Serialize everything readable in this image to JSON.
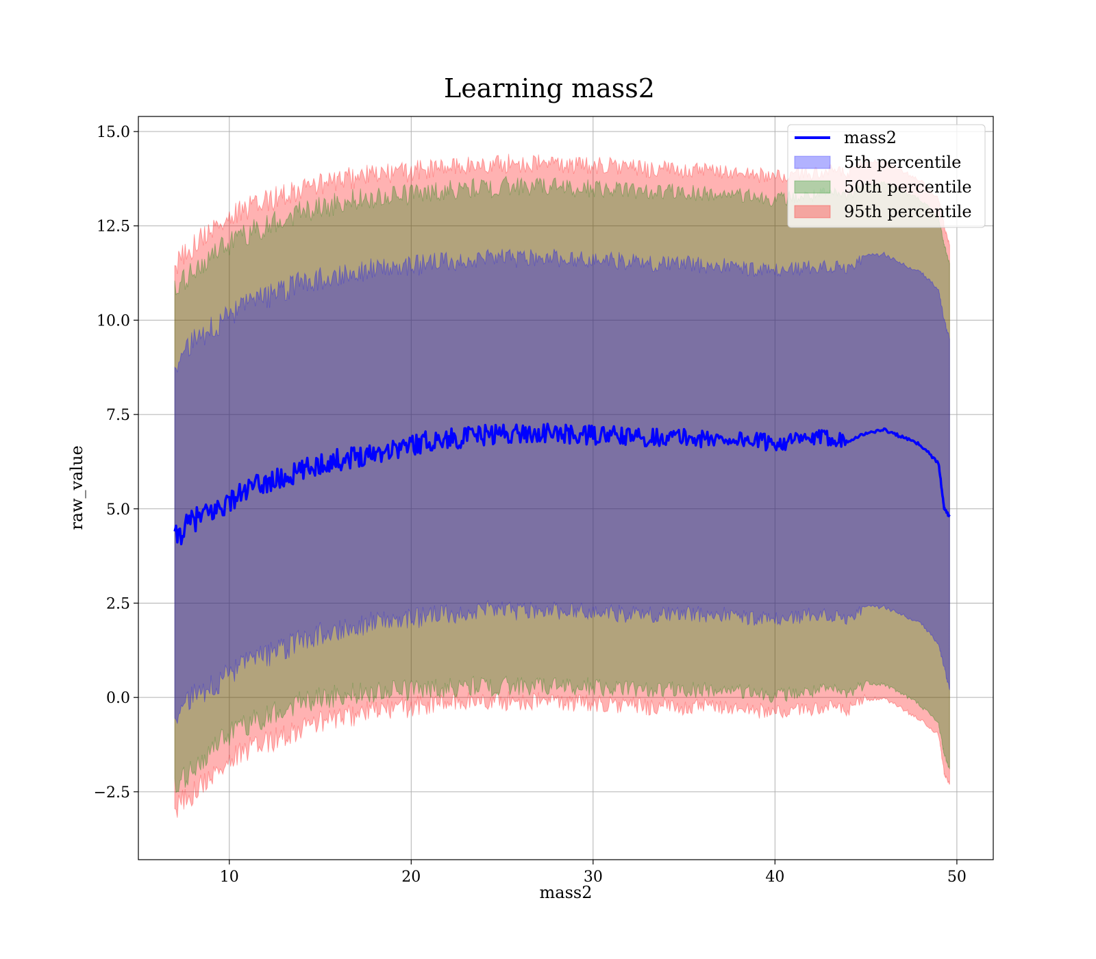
{
  "chart_data": {
    "type": "area",
    "title": "Learning mass2",
    "xlabel": "mass2",
    "ylabel": "raw_value",
    "xlim": [
      5,
      52
    ],
    "ylim": [
      -4.3,
      15.4
    ],
    "xticks": [
      10,
      20,
      30,
      40,
      50
    ],
    "yticks": [
      -2.5,
      0.0,
      2.5,
      5.0,
      7.5,
      10.0,
      12.5,
      15.0
    ],
    "xtick_labels": [
      "10",
      "20",
      "30",
      "40",
      "50"
    ],
    "ytick_labels": [
      "−2.5",
      "0.0",
      "2.5",
      "5.0",
      "7.5",
      "10.0",
      "12.5",
      "15.0"
    ],
    "grid": true,
    "legend_position": "top-right",
    "x": [
      7,
      8,
      9,
      10,
      11,
      12,
      13,
      14,
      15,
      16,
      17,
      18,
      19,
      20,
      21,
      22,
      23,
      24,
      25,
      26,
      27,
      28,
      29,
      30,
      31,
      32,
      33,
      34,
      35,
      36,
      37,
      38,
      39,
      40,
      41,
      42,
      43,
      44,
      45,
      46,
      47,
      48,
      49,
      49.3,
      49.6
    ],
    "series": [
      {
        "name": "mass2",
        "kind": "line",
        "color": "#0000ff",
        "values": [
          4.2,
          4.7,
          4.9,
          5.2,
          5.5,
          5.7,
          5.8,
          6.0,
          6.2,
          6.3,
          6.4,
          6.5,
          6.6,
          6.7,
          6.8,
          6.85,
          6.9,
          6.95,
          7.0,
          7.0,
          7.0,
          7.0,
          6.95,
          6.95,
          6.95,
          6.9,
          6.9,
          6.9,
          6.9,
          6.85,
          6.85,
          6.85,
          6.8,
          6.75,
          6.8,
          6.85,
          6.9,
          6.8,
          7.0,
          7.1,
          6.9,
          6.7,
          6.2,
          5.0,
          4.8
        ]
      },
      {
        "name": "5th percentile",
        "kind": "band",
        "color": "#0000ff",
        "lower": [
          -0.5,
          0.0,
          0.3,
          0.6,
          0.9,
          1.1,
          1.3,
          1.5,
          1.7,
          1.8,
          1.9,
          2.0,
          2.05,
          2.1,
          2.15,
          2.2,
          2.25,
          2.3,
          2.3,
          2.3,
          2.3,
          2.3,
          2.3,
          2.25,
          2.25,
          2.2,
          2.2,
          2.2,
          2.2,
          2.2,
          2.2,
          2.15,
          2.1,
          2.05,
          2.1,
          2.2,
          2.2,
          2.1,
          2.4,
          2.4,
          2.2,
          2.0,
          1.4,
          0.8,
          0.2
        ],
        "upper": [
          8.8,
          9.4,
          9.8,
          10.1,
          10.4,
          10.6,
          10.8,
          11.0,
          11.1,
          11.2,
          11.3,
          11.35,
          11.4,
          11.45,
          11.5,
          11.55,
          11.6,
          11.6,
          11.65,
          11.65,
          11.65,
          11.65,
          11.6,
          11.6,
          11.6,
          11.55,
          11.5,
          11.5,
          11.5,
          11.45,
          11.45,
          11.4,
          11.35,
          11.3,
          11.35,
          11.4,
          11.45,
          11.4,
          11.7,
          11.75,
          11.5,
          11.3,
          10.8,
          10.0,
          9.5
        ]
      },
      {
        "name": "50th percentile",
        "kind": "band",
        "color": "#008000",
        "lower": [
          -2.5,
          -1.9,
          -1.4,
          -1.0,
          -0.7,
          -0.5,
          -0.3,
          -0.1,
          0.0,
          0.05,
          0.1,
          0.15,
          0.2,
          0.2,
          0.25,
          0.25,
          0.3,
          0.3,
          0.3,
          0.3,
          0.3,
          0.3,
          0.3,
          0.3,
          0.25,
          0.25,
          0.2,
          0.2,
          0.2,
          0.2,
          0.2,
          0.15,
          0.1,
          0.05,
          0.1,
          0.15,
          0.2,
          0.1,
          0.4,
          0.35,
          0.1,
          -0.2,
          -0.7,
          -1.5,
          -1.9
        ],
        "upper": [
          10.7,
          11.3,
          11.7,
          12.0,
          12.3,
          12.5,
          12.7,
          12.9,
          13.0,
          13.1,
          13.2,
          13.25,
          13.3,
          13.35,
          13.4,
          13.45,
          13.5,
          13.5,
          13.55,
          13.55,
          13.55,
          13.55,
          13.5,
          13.5,
          13.5,
          13.45,
          13.4,
          13.4,
          13.4,
          13.35,
          13.35,
          13.3,
          13.25,
          13.2,
          13.25,
          13.3,
          13.35,
          13.3,
          13.6,
          13.65,
          13.4,
          13.2,
          12.7,
          12.0,
          11.5
        ]
      },
      {
        "name": "95th percentile",
        "kind": "band",
        "color": "#ff0000",
        "lower": [
          -3.0,
          -2.5,
          -2.1,
          -1.7,
          -1.4,
          -1.2,
          -1.0,
          -0.8,
          -0.65,
          -0.55,
          -0.45,
          -0.35,
          -0.3,
          -0.25,
          -0.2,
          -0.15,
          -0.1,
          -0.1,
          -0.1,
          -0.1,
          -0.1,
          -0.1,
          -0.15,
          -0.15,
          -0.2,
          -0.2,
          -0.25,
          -0.25,
          -0.25,
          -0.25,
          -0.25,
          -0.3,
          -0.35,
          -0.4,
          -0.35,
          -0.3,
          -0.25,
          -0.35,
          -0.05,
          -0.05,
          -0.3,
          -0.6,
          -1.0,
          -2.0,
          -2.3
        ],
        "upper": [
          11.4,
          12.0,
          12.4,
          12.7,
          12.95,
          13.15,
          13.35,
          13.5,
          13.6,
          13.7,
          13.8,
          13.85,
          13.9,
          13.95,
          14.0,
          14.05,
          14.1,
          14.1,
          14.15,
          14.15,
          14.15,
          14.15,
          14.1,
          14.1,
          14.1,
          14.05,
          14.0,
          14.0,
          14.0,
          13.95,
          13.95,
          13.9,
          13.85,
          13.8,
          13.85,
          13.9,
          13.95,
          13.9,
          14.2,
          14.2,
          13.95,
          13.7,
          13.2,
          12.5,
          12.0
        ]
      }
    ]
  }
}
